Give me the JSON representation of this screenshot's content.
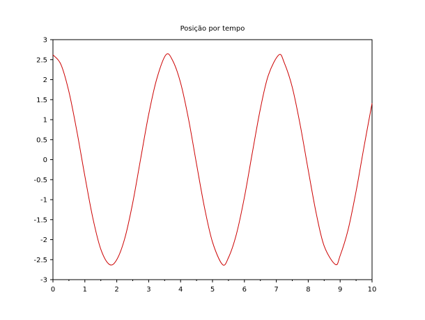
{
  "chart_data": {
    "type": "line",
    "title": "Posição por tempo",
    "xlabel": "",
    "ylabel": "",
    "xlim": [
      0,
      10
    ],
    "ylim": [
      -3,
      3
    ],
    "xticks": [
      "0",
      "1",
      "2",
      "3",
      "4",
      "5",
      "6",
      "7",
      "8",
      "9",
      "10"
    ],
    "yticks": [
      "3",
      "2.5",
      "2",
      "1.5",
      "1",
      "0.5",
      "0",
      "-0.5",
      "-1",
      "-1.5",
      "-2",
      "-2.5",
      "-3"
    ],
    "grid": false,
    "legend": "none",
    "line_color": "#cc0000",
    "series": [
      {
        "x": [
          0,
          0.25,
          0.5,
          0.75,
          1.0,
          1.25,
          1.5,
          1.77,
          2.0,
          2.25,
          2.5,
          2.75,
          3.0,
          3.25,
          3.54,
          3.75,
          4.0,
          4.25,
          4.5,
          4.75,
          5.0,
          5.31,
          5.5,
          5.75,
          6.0,
          6.25,
          6.5,
          6.75,
          7.08,
          7.25,
          7.5,
          7.75,
          8.0,
          8.25,
          8.5,
          8.85,
          9.0,
          9.25,
          9.5,
          9.75,
          10.0
        ],
        "y": [
          2.62,
          2.38,
          1.7,
          0.71,
          -0.41,
          -1.46,
          -2.24,
          -2.62,
          -2.5,
          -1.97,
          -1.08,
          0.03,
          1.13,
          2.01,
          2.62,
          2.48,
          1.92,
          1.01,
          -0.11,
          -1.2,
          -2.06,
          -2.62,
          -2.45,
          -1.86,
          -0.94,
          0.18,
          1.27,
          2.11,
          2.62,
          2.42,
          1.81,
          0.86,
          -0.26,
          -1.34,
          -2.16,
          -2.62,
          -2.4,
          -1.75,
          -0.79,
          0.33,
          1.41
        ]
      }
    ]
  }
}
